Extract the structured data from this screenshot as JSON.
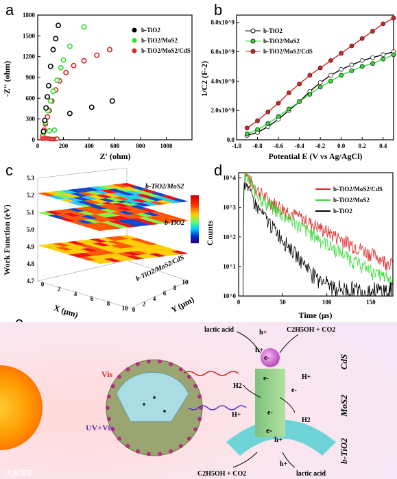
{
  "panels": {
    "a": "a",
    "b": "b",
    "c": "c",
    "d": "d",
    "e": "e"
  },
  "panel_a": {
    "ylabel": "-Z'' (ohm)",
    "xlabel": "Z' (ohm)",
    "yticks": [
      "0",
      "300",
      "600",
      "900",
      "1200",
      "1500",
      "1800"
    ],
    "xticks": [
      "0",
      "200",
      "400",
      "600",
      "800",
      "1000"
    ],
    "legend": [
      "b-TiO2",
      "b-TiO2/MoS2",
      "b-TiO2/MoS2/CdS"
    ]
  },
  "panel_b": {
    "ylabel": "1/C2 (F-2)",
    "xlabel": "Potential E (V vs Ag/AgCl)",
    "yticks": [
      "0.0",
      "2.0x10^9",
      "4.0x10^9",
      "6.0x10^9",
      "8.0x10^9"
    ],
    "xticks": [
      "-1.0",
      "-0.8",
      "-0.6",
      "-0.4",
      "-0.2",
      "0.0",
      "0.2",
      "0.4"
    ],
    "legend": [
      "b-TiO2",
      "b-TiO2/MoS2",
      "b-TiO2/MoS2/CdS"
    ]
  },
  "panel_c": {
    "zlabel": "Work Function (eV)",
    "xlabel": "X (μm)",
    "ylabel": "Y (μm)",
    "zticks": [
      "4.7",
      "4.8",
      "4.9",
      "5.0",
      "5.1",
      "5.2",
      "5.3"
    ],
    "xticks": [
      "0",
      "2",
      "4",
      "6",
      "8",
      "10"
    ],
    "yticks": [
      "0",
      "2",
      "4",
      "6",
      "8",
      "10"
    ],
    "layer_labels": [
      "b-TiO2/MoS2",
      "b-TiO2",
      "b-TiO2/MoS2/CdS"
    ]
  },
  "panel_d": {
    "ylabel": "Counts",
    "xlabel": "Time (μs)",
    "yticks": [
      "10^0",
      "10^1",
      "10^2",
      "10^3",
      "10^4"
    ],
    "xticks": [
      "0",
      "50",
      "100",
      "150"
    ],
    "legend": [
      "b-TiO2/MoS2/CdS",
      "b-TiO2/MoS2",
      "b-TiO2"
    ]
  },
  "panel_e": {
    "labels": {
      "vis": "Vis",
      "uvvis": "UV+Vis",
      "lactic_top": "lactic acid",
      "product_top": "C2H5OH + CO2",
      "lactic_bottom": "lactic acid",
      "product_bottom": "C2H5OH + CO2",
      "cds": "CdS",
      "mos2": "MoS2",
      "tio2": "b-TiO2",
      "h2": "H2",
      "hplus": "H+",
      "eminus": "e-",
      "hole": "h+"
    }
  },
  "watermark": "大部落客",
  "colors": {
    "black": "#000000",
    "green": "#33dd33",
    "red": "#dd2222"
  },
  "chart_data": [
    {
      "type": "scatter",
      "panel": "a",
      "xlabel": "Z' (ohm)",
      "ylabel": "-Z'' (ohm)",
      "xlim": [
        0,
        1200
      ],
      "ylim": [
        0,
        1800
      ],
      "series": [
        {
          "name": "b-TiO2",
          "x": [
            45,
            55,
            65,
            75,
            85,
            100,
            120,
            140,
            160,
            250,
            420,
            580
          ],
          "y": [
            120,
            280,
            460,
            620,
            780,
            1060,
            1300,
            1460,
            1650,
            380,
            470,
            560
          ]
        },
        {
          "name": "b-TiO2/MoS2",
          "x": [
            45,
            60,
            80,
            100,
            120,
            150,
            180,
            200,
            250,
            360,
            90,
            130
          ],
          "y": [
            100,
            250,
            420,
            560,
            700,
            860,
            1040,
            1150,
            1350,
            1630,
            130,
            140
          ]
        },
        {
          "name": "b-TiO2/MoS2/CdS",
          "x": [
            40,
            50,
            60,
            75,
            90,
            110,
            140,
            170,
            220,
            280,
            360,
            460,
            560
          ],
          "y": [
            60,
            140,
            230,
            330,
            420,
            560,
            720,
            850,
            970,
            1070,
            1140,
            1220,
            1300
          ]
        }
      ]
    },
    {
      "type": "line",
      "panel": "b",
      "xlabel": "Potential E (V vs Ag/AgCl)",
      "ylabel": "1/C2 (F-2)",
      "xlim": [
        -1.0,
        0.5
      ],
      "ylim": [
        0,
        8500000000.0
      ],
      "series": [
        {
          "name": "b-TiO2",
          "x": [
            -0.9,
            -0.8,
            -0.7,
            -0.6,
            -0.5,
            -0.4,
            -0.3,
            -0.2,
            -0.1,
            0.0,
            0.1,
            0.2,
            0.3,
            0.4,
            0.5
          ],
          "y": [
            300000000.0,
            500000000.0,
            900000000.0,
            1400000000.0,
            2000000000.0,
            2600000000.0,
            3300000000.0,
            3900000000.0,
            4400000000.0,
            4800000000.0,
            5100000000.0,
            5400000000.0,
            5600000000.0,
            5800000000.0,
            6000000000.0
          ]
        },
        {
          "name": "b-TiO2/MoS2",
          "x": [
            -0.9,
            -0.8,
            -0.7,
            -0.6,
            -0.5,
            -0.4,
            -0.3,
            -0.2,
            -0.1,
            0.0,
            0.1,
            0.2,
            0.3,
            0.4,
            0.5
          ],
          "y": [
            400000000.0,
            700000000.0,
            1100000000.0,
            1600000000.0,
            2100000000.0,
            2600000000.0,
            3100000000.0,
            3600000000.0,
            4000000000.0,
            4400000000.0,
            4700000000.0,
            5000000000.0,
            5200000000.0,
            5500000000.0,
            5800000000.0
          ]
        },
        {
          "name": "b-TiO2/MoS2/CdS",
          "x": [
            -0.9,
            -0.8,
            -0.7,
            -0.6,
            -0.5,
            -0.4,
            -0.3,
            -0.2,
            -0.1,
            0.0,
            0.1,
            0.2,
            0.3,
            0.4,
            0.5
          ],
          "y": [
            800000000.0,
            1300000000.0,
            1900000000.0,
            2500000000.0,
            3200000000.0,
            3800000000.0,
            4400000000.0,
            4900000000.0,
            5400000000.0,
            5900000000.0,
            6400000000.0,
            6900000000.0,
            7400000000.0,
            7900000000.0,
            8300000000.0
          ]
        }
      ]
    },
    {
      "type": "heatmap",
      "panel": "c",
      "zlim": [
        4.7,
        5.3
      ],
      "layers": [
        {
          "name": "b-TiO2/MoS2",
          "z": 5.2
        },
        {
          "name": "b-TiO2",
          "z": 5.1
        },
        {
          "name": "b-TiO2/MoS2/CdS",
          "z": 4.85
        }
      ]
    },
    {
      "type": "line",
      "panel": "d",
      "xlabel": "Time (μs)",
      "ylabel": "Counts",
      "xlim": [
        0,
        175
      ],
      "ylim": [
        1,
        15000
      ],
      "yscale": "log",
      "series": [
        {
          "name": "b-TiO2/MoS2/CdS",
          "tau": 28,
          "peak": 13000
        },
        {
          "name": "b-TiO2/MoS2",
          "tau": 22,
          "peak": 12000
        },
        {
          "name": "b-TiO2",
          "tau": 12,
          "peak": 9000
        }
      ]
    }
  ]
}
